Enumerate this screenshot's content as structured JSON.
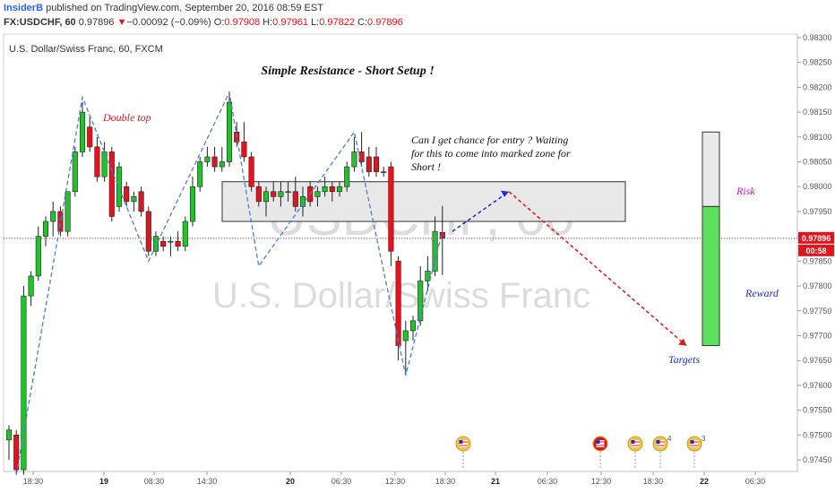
{
  "header": {
    "author": "InsiderB",
    "published": "published on TradingView.com, September 20, 2016 08:59 EST",
    "symbol": "FX:USDCHF, 60",
    "price": "0.97896",
    "change_arrow": "▼",
    "change": "−0.00092 (−0.09%)",
    "open_label": "O:",
    "open": "0.97908",
    "high_label": "H:",
    "high": "0.97961",
    "low_label": "L:",
    "low": "0.97822",
    "close_label": "C:",
    "close": "0.97896"
  },
  "chart_title": "U.S. Dollar/Swiss Franc, 60, FXCM",
  "watermark": {
    "line1": "USDCHF, 60",
    "line2": "U.S. Dollar/Swiss Franc"
  },
  "annotations": {
    "setup_title": "Simple Resistance - Short Setup !",
    "double_top": "Double top",
    "entry_note": [
      "Can I get chance for entry ? Waiting",
      "for this to come into marked zone for",
      "Short !"
    ],
    "risk": "Risk",
    "reward": "Reward",
    "targets": "Targets"
  },
  "price_badges": {
    "current": "0.97896",
    "countdown": "00:58"
  },
  "colors": {
    "up": "#22c22a",
    "down": "#e0151d",
    "pattern_line": "#4a7fd6",
    "projection_blue": "#1a2fd6",
    "projection_red": "#e0151d",
    "zone_fill": "#e8e8e8",
    "risk_fill": "#e9e9e9",
    "reward_fill": "#5ee05e"
  },
  "event_icons": [
    "us-flag-icon",
    "us-flag-icon",
    "us-flag-icon",
    "us-flag-icon",
    "us-flag-icon"
  ],
  "event_counts": [
    "",
    "",
    "",
    "4",
    "3"
  ],
  "chart_data": {
    "type": "candlestick",
    "y_ticks": [
      "0.98300",
      "0.98250",
      "0.98200",
      "0.98150",
      "0.98100",
      "0.98050",
      "0.98000",
      "0.97950",
      "0.97900",
      "0.97850",
      "0.97800",
      "0.97750",
      "0.97700",
      "0.97650",
      "0.97600",
      "0.97550",
      "0.97500",
      "0.97450"
    ],
    "ylim": [
      0.9742,
      0.9831
    ],
    "x_ticks": [
      "18:30",
      "19",
      "08:30",
      "14:30",
      "20",
      "06:30",
      "12:30",
      "18:30",
      "21",
      "06:30",
      "12:30",
      "18:30",
      "22",
      "06:30"
    ],
    "current_price": 0.97896,
    "resistance_zone": [
      0.9793,
      0.9801
    ],
    "risk_box": [
      0.9796,
      0.9811
    ],
    "reward_box": [
      0.9768,
      0.9796
    ],
    "candles": [
      {
        "o": 0.9749,
        "h": 0.9752,
        "l": 0.9745,
        "c": 0.9751
      },
      {
        "o": 0.975,
        "h": 0.9751,
        "l": 0.9742,
        "c": 0.9743
      },
      {
        "o": 0.9743,
        "h": 0.978,
        "l": 0.9742,
        "c": 0.9778
      },
      {
        "o": 0.9778,
        "h": 0.9783,
        "l": 0.9776,
        "c": 0.9782
      },
      {
        "o": 0.9782,
        "h": 0.9792,
        "l": 0.9781,
        "c": 0.979
      },
      {
        "o": 0.979,
        "h": 0.9794,
        "l": 0.9788,
        "c": 0.9793
      },
      {
        "o": 0.9793,
        "h": 0.9797,
        "l": 0.979,
        "c": 0.9795
      },
      {
        "o": 0.9795,
        "h": 0.9796,
        "l": 0.979,
        "c": 0.9791
      },
      {
        "o": 0.9791,
        "h": 0.9799,
        "l": 0.979,
        "c": 0.9799
      },
      {
        "o": 0.9799,
        "h": 0.9808,
        "l": 0.9798,
        "c": 0.9807
      },
      {
        "o": 0.9807,
        "h": 0.9817,
        "l": 0.9806,
        "c": 0.9815
      },
      {
        "o": 0.9812,
        "h": 0.9814,
        "l": 0.9807,
        "c": 0.9808
      },
      {
        "o": 0.9808,
        "h": 0.981,
        "l": 0.9801,
        "c": 0.9802
      },
      {
        "o": 0.9802,
        "h": 0.9809,
        "l": 0.9801,
        "c": 0.9807
      },
      {
        "o": 0.9807,
        "h": 0.9808,
        "l": 0.9793,
        "c": 0.9794
      },
      {
        "o": 0.9796,
        "h": 0.9805,
        "l": 0.9795,
        "c": 0.9804
      },
      {
        "o": 0.98,
        "h": 0.9801,
        "l": 0.9796,
        "c": 0.9797
      },
      {
        "o": 0.9797,
        "h": 0.9799,
        "l": 0.9795,
        "c": 0.9798
      },
      {
        "o": 0.9799,
        "h": 0.98,
        "l": 0.9794,
        "c": 0.9795
      },
      {
        "o": 0.9795,
        "h": 0.9796,
        "l": 0.9786,
        "c": 0.9787
      },
      {
        "o": 0.9787,
        "h": 0.9791,
        "l": 0.9786,
        "c": 0.979
      },
      {
        "o": 0.9789,
        "h": 0.979,
        "l": 0.9787,
        "c": 0.9788
      },
      {
        "o": 0.9789,
        "h": 0.979,
        "l": 0.9786,
        "c": 0.9789
      },
      {
        "o": 0.9789,
        "h": 0.9791,
        "l": 0.9787,
        "c": 0.9788
      },
      {
        "o": 0.9788,
        "h": 0.9794,
        "l": 0.9787,
        "c": 0.9793
      },
      {
        "o": 0.9793,
        "h": 0.9802,
        "l": 0.9792,
        "c": 0.98
      },
      {
        "o": 0.98,
        "h": 0.9806,
        "l": 0.9799,
        "c": 0.9805
      },
      {
        "o": 0.9805,
        "h": 0.9808,
        "l": 0.9804,
        "c": 0.9806
      },
      {
        "o": 0.9806,
        "h": 0.9808,
        "l": 0.9803,
        "c": 0.9804
      },
      {
        "o": 0.9804,
        "h": 0.9808,
        "l": 0.9803,
        "c": 0.9805
      },
      {
        "o": 0.9805,
        "h": 0.9819,
        "l": 0.9804,
        "c": 0.9817
      },
      {
        "o": 0.9811,
        "h": 0.9813,
        "l": 0.9808,
        "c": 0.9809
      },
      {
        "o": 0.9809,
        "h": 0.9813,
        "l": 0.9805,
        "c": 0.9806
      },
      {
        "o": 0.9806,
        "h": 0.9807,
        "l": 0.9799,
        "c": 0.98
      },
      {
        "o": 0.98,
        "h": 0.9801,
        "l": 0.9796,
        "c": 0.9797
      },
      {
        "o": 0.9797,
        "h": 0.98,
        "l": 0.9794,
        "c": 0.9799
      },
      {
        "o": 0.9799,
        "h": 0.9801,
        "l": 0.9797,
        "c": 0.9798
      },
      {
        "o": 0.9798,
        "h": 0.9801,
        "l": 0.9796,
        "c": 0.9799
      },
      {
        "o": 0.9799,
        "h": 0.9801,
        "l": 0.9797,
        "c": 0.9799
      },
      {
        "o": 0.9799,
        "h": 0.9802,
        "l": 0.9795,
        "c": 0.9796
      },
      {
        "o": 0.9796,
        "h": 0.98,
        "l": 0.9794,
        "c": 0.9798
      },
      {
        "o": 0.98,
        "h": 0.9801,
        "l": 0.9796,
        "c": 0.9797
      },
      {
        "o": 0.9798,
        "h": 0.98,
        "l": 0.9796,
        "c": 0.9799
      },
      {
        "o": 0.9799,
        "h": 0.9802,
        "l": 0.9798,
        "c": 0.98
      },
      {
        "o": 0.98,
        "h": 0.9801,
        "l": 0.9797,
        "c": 0.9799
      },
      {
        "o": 0.9799,
        "h": 0.9801,
        "l": 0.9798,
        "c": 0.98
      },
      {
        "o": 0.98,
        "h": 0.9805,
        "l": 0.9799,
        "c": 0.9804
      },
      {
        "o": 0.9804,
        "h": 0.981,
        "l": 0.9803,
        "c": 0.9807
      },
      {
        "o": 0.9807,
        "h": 0.9811,
        "l": 0.9804,
        "c": 0.9805
      },
      {
        "o": 0.9806,
        "h": 0.9808,
        "l": 0.9802,
        "c": 0.9803
      },
      {
        "o": 0.9806,
        "h": 0.9808,
        "l": 0.9802,
        "c": 0.9803
      },
      {
        "o": 0.9803,
        "h": 0.9804,
        "l": 0.9802,
        "c": 0.9803
      },
      {
        "o": 0.9804,
        "h": 0.9805,
        "l": 0.9784,
        "c": 0.9787
      },
      {
        "o": 0.9785,
        "h": 0.9786,
        "l": 0.9765,
        "c": 0.9768
      },
      {
        "o": 0.9769,
        "h": 0.9773,
        "l": 0.9762,
        "c": 0.9771
      },
      {
        "o": 0.9771,
        "h": 0.9774,
        "l": 0.9769,
        "c": 0.9773
      },
      {
        "o": 0.9773,
        "h": 0.9784,
        "l": 0.9772,
        "c": 0.9781
      },
      {
        "o": 0.9781,
        "h": 0.9786,
        "l": 0.9779,
        "c": 0.9783
      },
      {
        "o": 0.9783,
        "h": 0.9794,
        "l": 0.9782,
        "c": 0.9791
      },
      {
        "o": 0.97908,
        "h": 0.97961,
        "l": 0.97822,
        "c": 0.97896
      }
    ]
  }
}
